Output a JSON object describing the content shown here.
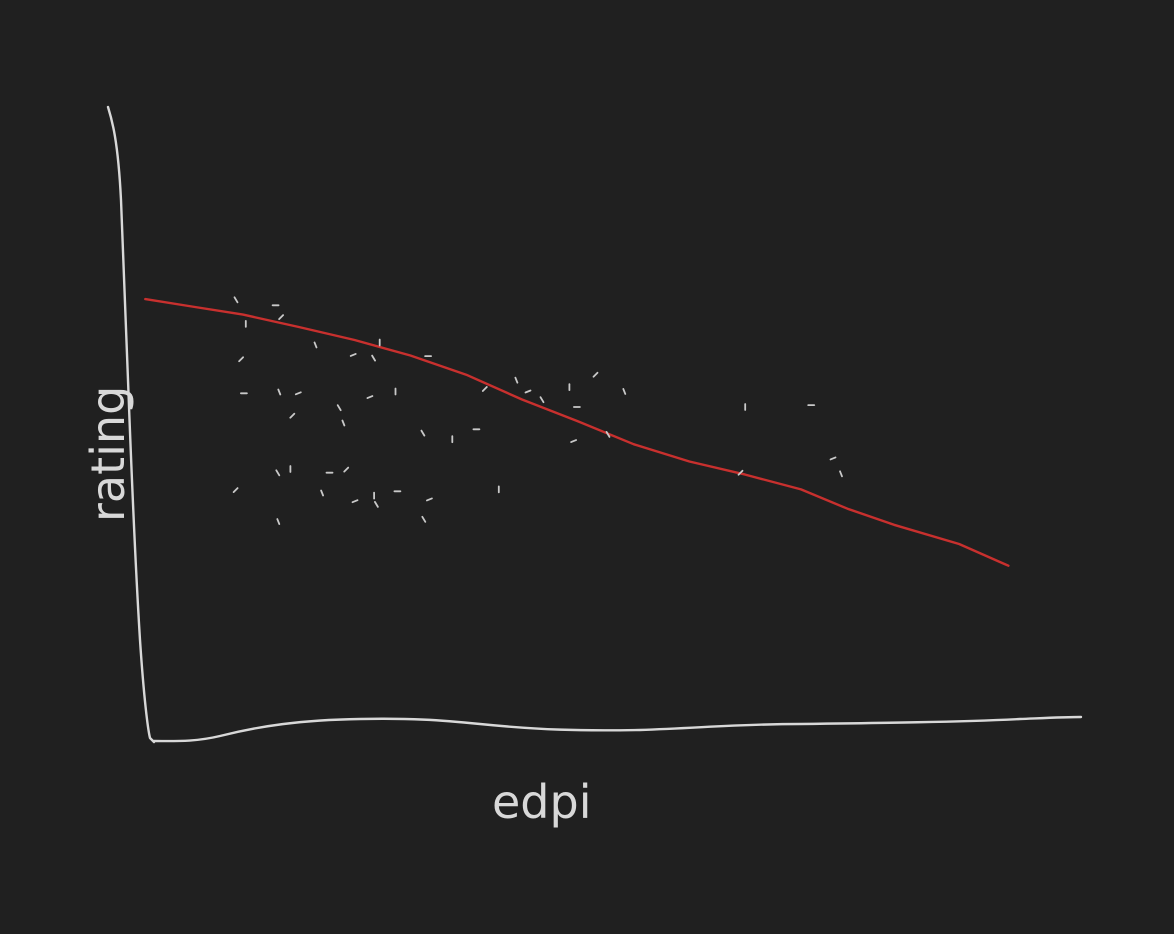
{
  "colors": {
    "background": "#202020",
    "axes": "#d8d8d8",
    "points": "#c9c9c9",
    "trend": "#c8302e"
  },
  "chart_data": {
    "type": "scatter",
    "title": "",
    "xlabel": "edpi",
    "ylabel": "rating",
    "xlim": [
      0,
      100
    ],
    "ylim": [
      0,
      100
    ],
    "grid": false,
    "legend": "none",
    "points": [
      {
        "x": 9.3,
        "y": 69.3
      },
      {
        "x": 10.3,
        "y": 65.5
      },
      {
        "x": 13.5,
        "y": 68.5
      },
      {
        "x": 14.1,
        "y": 66.6
      },
      {
        "x": 17.8,
        "y": 62.2
      },
      {
        "x": 21.9,
        "y": 60.5
      },
      {
        "x": 24.1,
        "y": 59.9
      },
      {
        "x": 24.7,
        "y": 62.5
      },
      {
        "x": 29.9,
        "y": 60.3
      },
      {
        "x": 9.8,
        "y": 59.8
      },
      {
        "x": 13.9,
        "y": 54.6
      },
      {
        "x": 16.0,
        "y": 54.3
      },
      {
        "x": 20.4,
        "y": 51.9
      },
      {
        "x": 26.4,
        "y": 54.6
      },
      {
        "x": 10.1,
        "y": 54.3
      },
      {
        "x": 15.3,
        "y": 50.7
      },
      {
        "x": 20.8,
        "y": 49.6
      },
      {
        "x": 23.7,
        "y": 53.7
      },
      {
        "x": 29.4,
        "y": 47.8
      },
      {
        "x": 32.5,
        "y": 46.9
      },
      {
        "x": 35.1,
        "y": 48.5
      },
      {
        "x": 36.0,
        "y": 55.0
      },
      {
        "x": 39.4,
        "y": 56.5
      },
      {
        "x": 40.7,
        "y": 54.6
      },
      {
        "x": 42.2,
        "y": 53.2
      },
      {
        "x": 45.1,
        "y": 55.3
      },
      {
        "x": 45.9,
        "y": 52.1
      },
      {
        "x": 47.9,
        "y": 57.3
      },
      {
        "x": 51.0,
        "y": 54.7
      },
      {
        "x": 45.6,
        "y": 46.6
      },
      {
        "x": 49.3,
        "y": 47.6
      },
      {
        "x": 64.0,
        "y": 52.1
      },
      {
        "x": 71.1,
        "y": 52.4
      },
      {
        "x": 63.5,
        "y": 41.5
      },
      {
        "x": 74.3,
        "y": 41.4
      },
      {
        "x": 73.5,
        "y": 43.8
      },
      {
        "x": 13.8,
        "y": 41.4
      },
      {
        "x": 15.1,
        "y": 42.1
      },
      {
        "x": 19.3,
        "y": 41.5
      },
      {
        "x": 21.1,
        "y": 42.0
      },
      {
        "x": 18.5,
        "y": 38.3
      },
      {
        "x": 22.1,
        "y": 36.9
      },
      {
        "x": 24.4,
        "y": 36.3
      },
      {
        "x": 24.1,
        "y": 37.8
      },
      {
        "x": 26.6,
        "y": 38.5
      },
      {
        "x": 9.2,
        "y": 38.7
      },
      {
        "x": 13.8,
        "y": 33.7
      },
      {
        "x": 30.1,
        "y": 37.2
      },
      {
        "x": 29.5,
        "y": 33.9
      },
      {
        "x": 37.5,
        "y": 38.8
      }
    ],
    "trend": {
      "x": [
        -0.5,
        4.5,
        10.0,
        16.0,
        22.0,
        28.0,
        34.0,
        40.0,
        46.0,
        52.0,
        58.0,
        64.0,
        70.0,
        75.0,
        80.0,
        87.0,
        92.0,
        92.3
      ],
      "y": [
        69.5,
        68.3,
        67.0,
        65.0,
        62.9,
        60.4,
        57.3,
        53.3,
        49.8,
        46.1,
        43.3,
        41.2,
        38.8,
        35.7,
        33.1,
        30.0,
        26.7,
        26.5
      ]
    }
  }
}
